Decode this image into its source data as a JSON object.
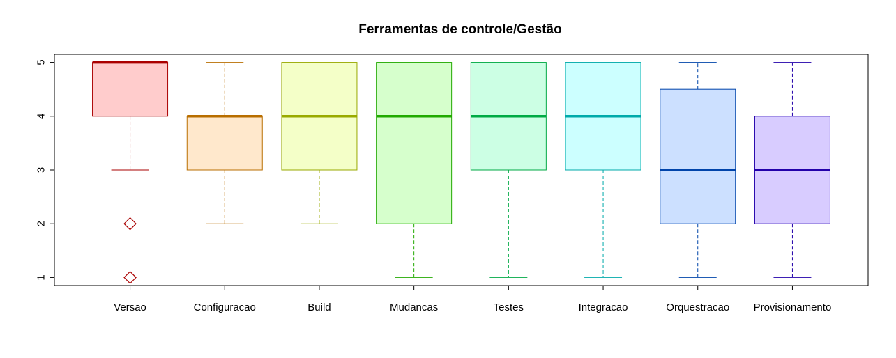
{
  "chart_data": {
    "type": "boxplot",
    "title": "Ferramentas de controle/Gestão",
    "xlabel": "",
    "ylabel": "",
    "ylim": [
      0.85,
      5.15
    ],
    "yticks": [
      1,
      2,
      3,
      4,
      5
    ],
    "ytick_labels": [
      "1",
      "2",
      "3",
      "4",
      "5"
    ],
    "grid": false,
    "legend": "none",
    "categories": [
      "Versao",
      "Configuracao",
      "Build",
      "Mudancas",
      "Testes",
      "Integracao",
      "Orquestracao",
      "Provisionamento"
    ],
    "boxes": [
      {
        "label": "Versao",
        "whisker_low": 3,
        "q1": 4,
        "median": 5,
        "q3": 5,
        "whisker_high": 5,
        "outliers": [
          2,
          1
        ],
        "fill": "#ffcccc",
        "stroke": "#aa0000"
      },
      {
        "label": "Configuracao",
        "whisker_low": 2,
        "q1": 3,
        "median": 4,
        "q3": 4,
        "whisker_high": 5,
        "outliers": [],
        "fill": "#ffe8cc",
        "stroke": "#b86e00"
      },
      {
        "label": "Build",
        "whisker_low": 2,
        "q1": 3,
        "median": 4,
        "q3": 5,
        "whisker_high": 5,
        "outliers": [],
        "fill": "#f4ffc8",
        "stroke": "#99aa00"
      },
      {
        "label": "Mudancas",
        "whisker_low": 1,
        "q1": 2,
        "median": 4,
        "q3": 5,
        "whisker_high": 5,
        "outliers": [],
        "fill": "#d6ffcc",
        "stroke": "#22aa00"
      },
      {
        "label": "Testes",
        "whisker_low": 1,
        "q1": 3,
        "median": 4,
        "q3": 5,
        "whisker_high": 5,
        "outliers": [],
        "fill": "#ccffe4",
        "stroke": "#00aa44"
      },
      {
        "label": "Integracao",
        "whisker_low": 1,
        "q1": 3,
        "median": 4,
        "q3": 5,
        "whisker_high": 5,
        "outliers": [],
        "fill": "#ccffff",
        "stroke": "#00aaaa"
      },
      {
        "label": "Orquestracao",
        "whisker_low": 1,
        "q1": 2,
        "median": 3,
        "q3": 4.5,
        "whisker_high": 5,
        "outliers": [],
        "fill": "#cce0ff",
        "stroke": "#0044aa"
      },
      {
        "label": "Provisionamento",
        "whisker_low": 1,
        "q1": 2,
        "median": 3,
        "q3": 4,
        "whisker_high": 5,
        "outliers": [],
        "fill": "#d8ccff",
        "stroke": "#2200aa"
      }
    ]
  }
}
